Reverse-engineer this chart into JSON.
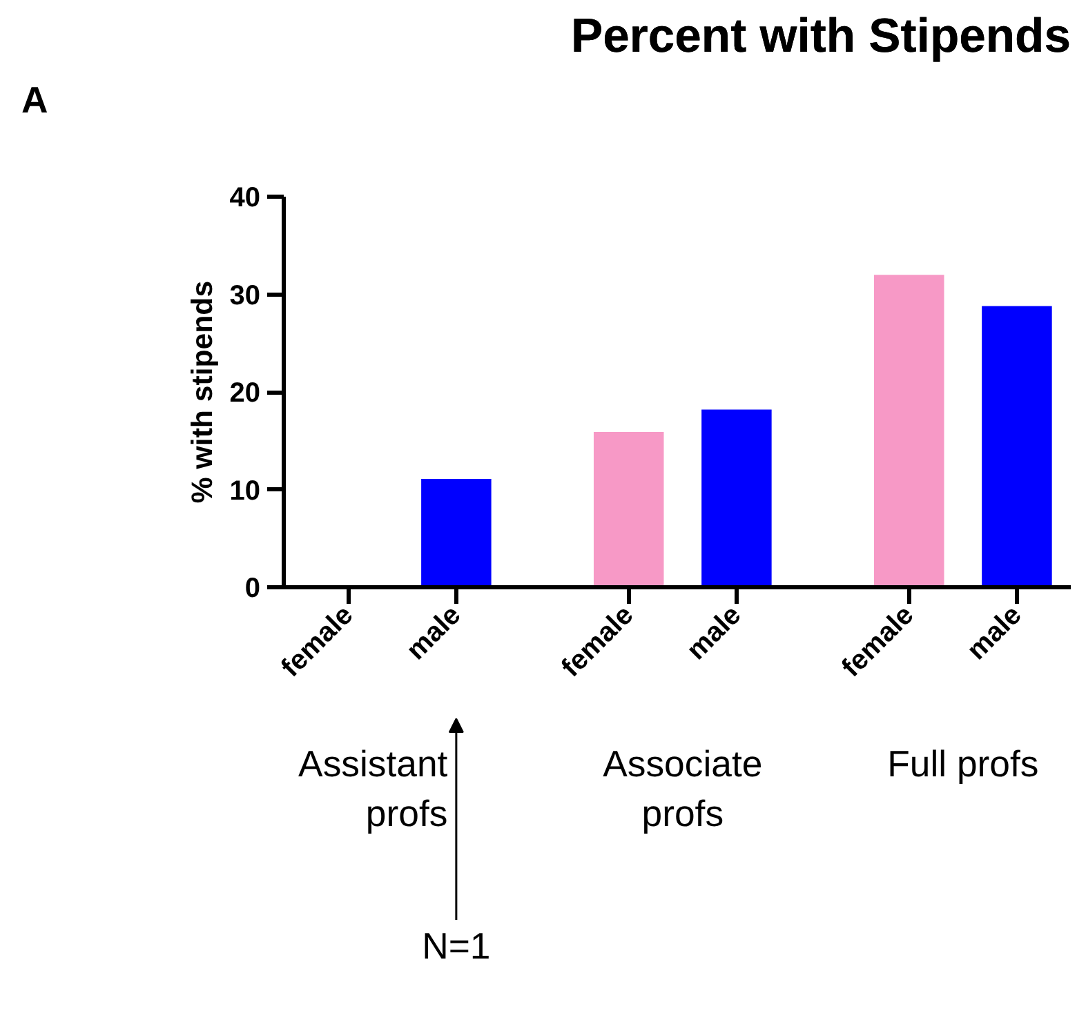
{
  "chart_data": {
    "type": "bar",
    "title": "Percent with Stipends",
    "ylabel": "% with stipends",
    "categories": [
      "female",
      "male",
      "female",
      "male",
      "female",
      "male"
    ],
    "values": [
      0,
      11.1,
      15.9,
      18.2,
      32.0,
      28.8
    ],
    "colors": [
      "#f799c6",
      "#0000ff",
      "#f799c6",
      "#0000ff",
      "#f799c6",
      "#0000ff"
    ],
    "ylim": [
      0,
      40
    ],
    "yticks": [
      0,
      10,
      20,
      30,
      40
    ],
    "grid": false,
    "annotations": [
      "A",
      "Assistant\nprofs",
      "Associate\nprofs",
      "Full profs",
      "N=1"
    ]
  }
}
